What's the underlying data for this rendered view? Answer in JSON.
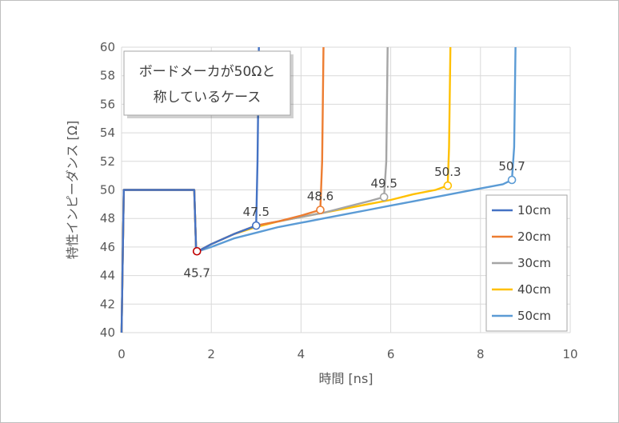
{
  "chart_data": {
    "type": "line",
    "xlabel": "時間 [ns]",
    "ylabel": "特性インピーダンス [Ω]",
    "xlim": [
      0,
      10
    ],
    "ylim": [
      40,
      60
    ],
    "x_ticks": [
      0,
      2,
      4,
      6,
      8,
      10
    ],
    "y_ticks": [
      40,
      42,
      44,
      46,
      48,
      50,
      52,
      54,
      56,
      58,
      60
    ],
    "grid": true,
    "legend_position": "right",
    "annotation": [
      "ボードメーカが50Ωと",
      "称しているケース"
    ],
    "series": [
      {
        "name": "10cm",
        "color": "#4472C4",
        "x": [
          0.0,
          0.02,
          0.05,
          1.62,
          1.66,
          1.7,
          2.0,
          2.5,
          3.0,
          3.03,
          3.06
        ],
        "y": [
          40,
          44,
          50,
          50,
          46,
          45.7,
          46.2,
          46.9,
          47.5,
          52,
          60
        ]
      },
      {
        "name": "20cm",
        "color": "#ED7D31",
        "x": [
          0.0,
          0.02,
          0.05,
          1.62,
          1.66,
          1.7,
          2.0,
          2.5,
          3.0,
          3.5,
          4.0,
          4.43,
          4.47,
          4.5
        ],
        "y": [
          40,
          44,
          50,
          50,
          46,
          45.7,
          46.2,
          46.9,
          47.5,
          47.8,
          48.2,
          48.6,
          52,
          60
        ]
      },
      {
        "name": "30cm",
        "color": "#A5A5A5",
        "x": [
          0.0,
          0.02,
          0.05,
          1.62,
          1.66,
          1.7,
          2.0,
          2.5,
          3.0,
          3.5,
          4.0,
          4.5,
          5.0,
          5.5,
          5.85,
          5.9,
          5.93
        ],
        "y": [
          40,
          44,
          50,
          50,
          46,
          45.7,
          46.2,
          46.9,
          47.5,
          47.8,
          48.1,
          48.4,
          48.8,
          49.2,
          49.5,
          52,
          60
        ]
      },
      {
        "name": "40cm",
        "color": "#FFC000",
        "x": [
          0.0,
          0.02,
          0.05,
          1.62,
          1.66,
          1.7,
          2.0,
          2.5,
          3.0,
          3.5,
          4.0,
          4.5,
          5.0,
          5.5,
          6.0,
          6.5,
          7.0,
          7.27,
          7.3,
          7.33
        ],
        "y": [
          40,
          44,
          50,
          50,
          46,
          45.7,
          46.2,
          46.9,
          47.4,
          47.8,
          48.1,
          48.4,
          48.7,
          49.0,
          49.3,
          49.7,
          50.0,
          50.3,
          53,
          60
        ]
      },
      {
        "name": "50cm",
        "color": "#5B9BD5",
        "x": [
          0.0,
          0.02,
          0.05,
          1.62,
          1.66,
          1.7,
          2.0,
          2.5,
          3.0,
          3.5,
          4.0,
          4.5,
          5.0,
          5.5,
          6.0,
          6.5,
          7.0,
          7.5,
          8.0,
          8.5,
          8.7,
          8.75,
          8.78
        ],
        "y": [
          40,
          44,
          50,
          50,
          46,
          45.7,
          46.0,
          46.6,
          47.0,
          47.4,
          47.7,
          48.0,
          48.3,
          48.6,
          48.9,
          49.2,
          49.5,
          49.8,
          50.1,
          50.4,
          50.7,
          53,
          60
        ]
      }
    ],
    "markers": [
      {
        "x": 1.68,
        "y": 45.7,
        "label": "45.7",
        "color": "#C00000",
        "label_pos": "below"
      },
      {
        "x": 3.0,
        "y": 47.5,
        "label": "47.5",
        "color": "#4472C4",
        "label_pos": "above"
      },
      {
        "x": 4.43,
        "y": 48.6,
        "label": "48.6",
        "color": "#ED7D31",
        "label_pos": "above"
      },
      {
        "x": 5.85,
        "y": 49.5,
        "label": "49.5",
        "color": "#A5A5A5",
        "label_pos": "above"
      },
      {
        "x": 7.27,
        "y": 50.3,
        "label": "50.3",
        "color": "#FFC000",
        "label_pos": "above"
      },
      {
        "x": 8.7,
        "y": 50.7,
        "label": "50.7",
        "color": "#5B9BD5",
        "label_pos": "above"
      }
    ]
  }
}
